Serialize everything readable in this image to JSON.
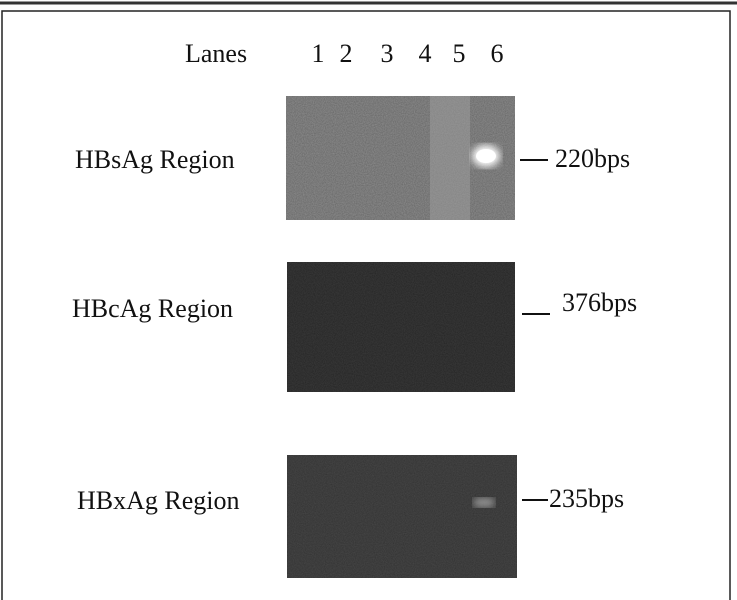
{
  "lanes": {
    "title": "Lanes",
    "numbers": [
      "1",
      "2",
      "3",
      "4",
      "5",
      "6"
    ]
  },
  "panels": [
    {
      "label": "HBsAg Region",
      "band_size": "220bps"
    },
    {
      "label": "HBcAg Region",
      "band_size": "376bps"
    },
    {
      "label": "HBxAg Region",
      "band_size": "235bps"
    }
  ]
}
